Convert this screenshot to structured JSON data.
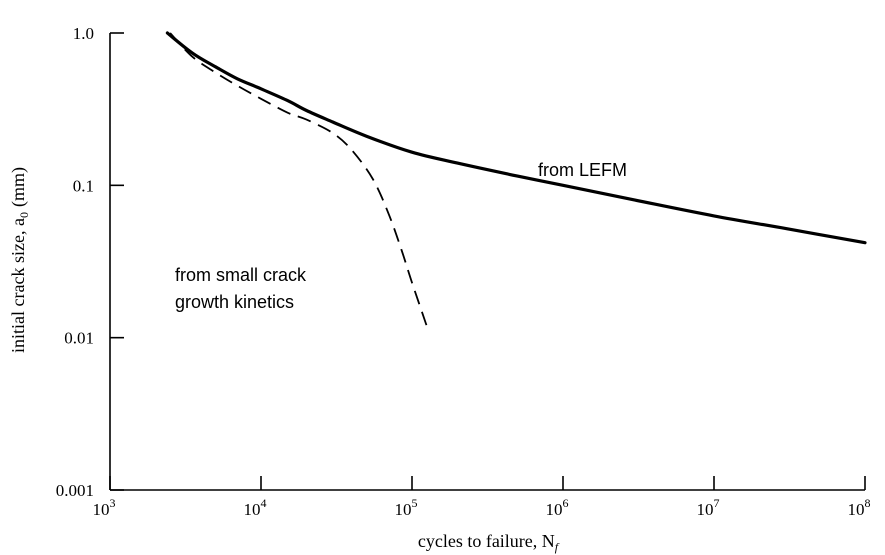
{
  "chart_data": {
    "type": "line",
    "title": "",
    "xlabel": "cycles to failure, N",
    "xlabel_sub": "f",
    "ylabel": "initial crack size, a",
    "ylabel_sub": "0",
    "ylabel_unit": "(mm)",
    "xscale": "log",
    "yscale": "log",
    "xlim": [
      1000,
      100000000
    ],
    "ylim": [
      0.001,
      1.0
    ],
    "x_ticks": [
      {
        "value": 1000,
        "base": "10",
        "exp": "3"
      },
      {
        "value": 10000,
        "base": "10",
        "exp": "4"
      },
      {
        "value": 100000,
        "base": "10",
        "exp": "5"
      },
      {
        "value": 1000000,
        "base": "10",
        "exp": "6"
      },
      {
        "value": 10000000,
        "base": "10",
        "exp": "7"
      },
      {
        "value": 100000000,
        "base": "10",
        "exp": "8"
      }
    ],
    "y_ticks": [
      {
        "value": 0.001,
        "label": "0.001"
      },
      {
        "value": 0.01,
        "label": "0.01"
      },
      {
        "value": 0.1,
        "label": "0.1"
      },
      {
        "value": 1.0,
        "label": "1.0"
      }
    ],
    "series": [
      {
        "name": "from LEFM",
        "style": "solid",
        "x": [
          2400,
          3500,
          5000,
          7000,
          10000,
          15000,
          20000,
          30000,
          50000,
          100000,
          200000,
          500000,
          1000000,
          3000000,
          10000000,
          30000000,
          100000000
        ],
        "y": [
          1.0,
          0.74,
          0.6,
          0.5,
          0.43,
          0.36,
          0.31,
          0.26,
          0.21,
          0.165,
          0.14,
          0.115,
          0.1,
          0.08,
          0.063,
          0.052,
          0.042
        ]
      },
      {
        "name": "from small crack growth kinetics",
        "style": "dashed",
        "x": [
          2500,
          3500,
          5000,
          7000,
          10000,
          15000,
          20000,
          30000,
          40000,
          55000,
          70000,
          85000,
          100000,
          125000
        ],
        "y": [
          1.0,
          0.7,
          0.55,
          0.45,
          0.37,
          0.3,
          0.27,
          0.22,
          0.17,
          0.11,
          0.065,
          0.038,
          0.023,
          0.012
        ]
      }
    ],
    "annotations": [
      {
        "text": "from LEFM"
      },
      {
        "text": "from small crack"
      },
      {
        "text": "growth kinetics"
      }
    ]
  }
}
